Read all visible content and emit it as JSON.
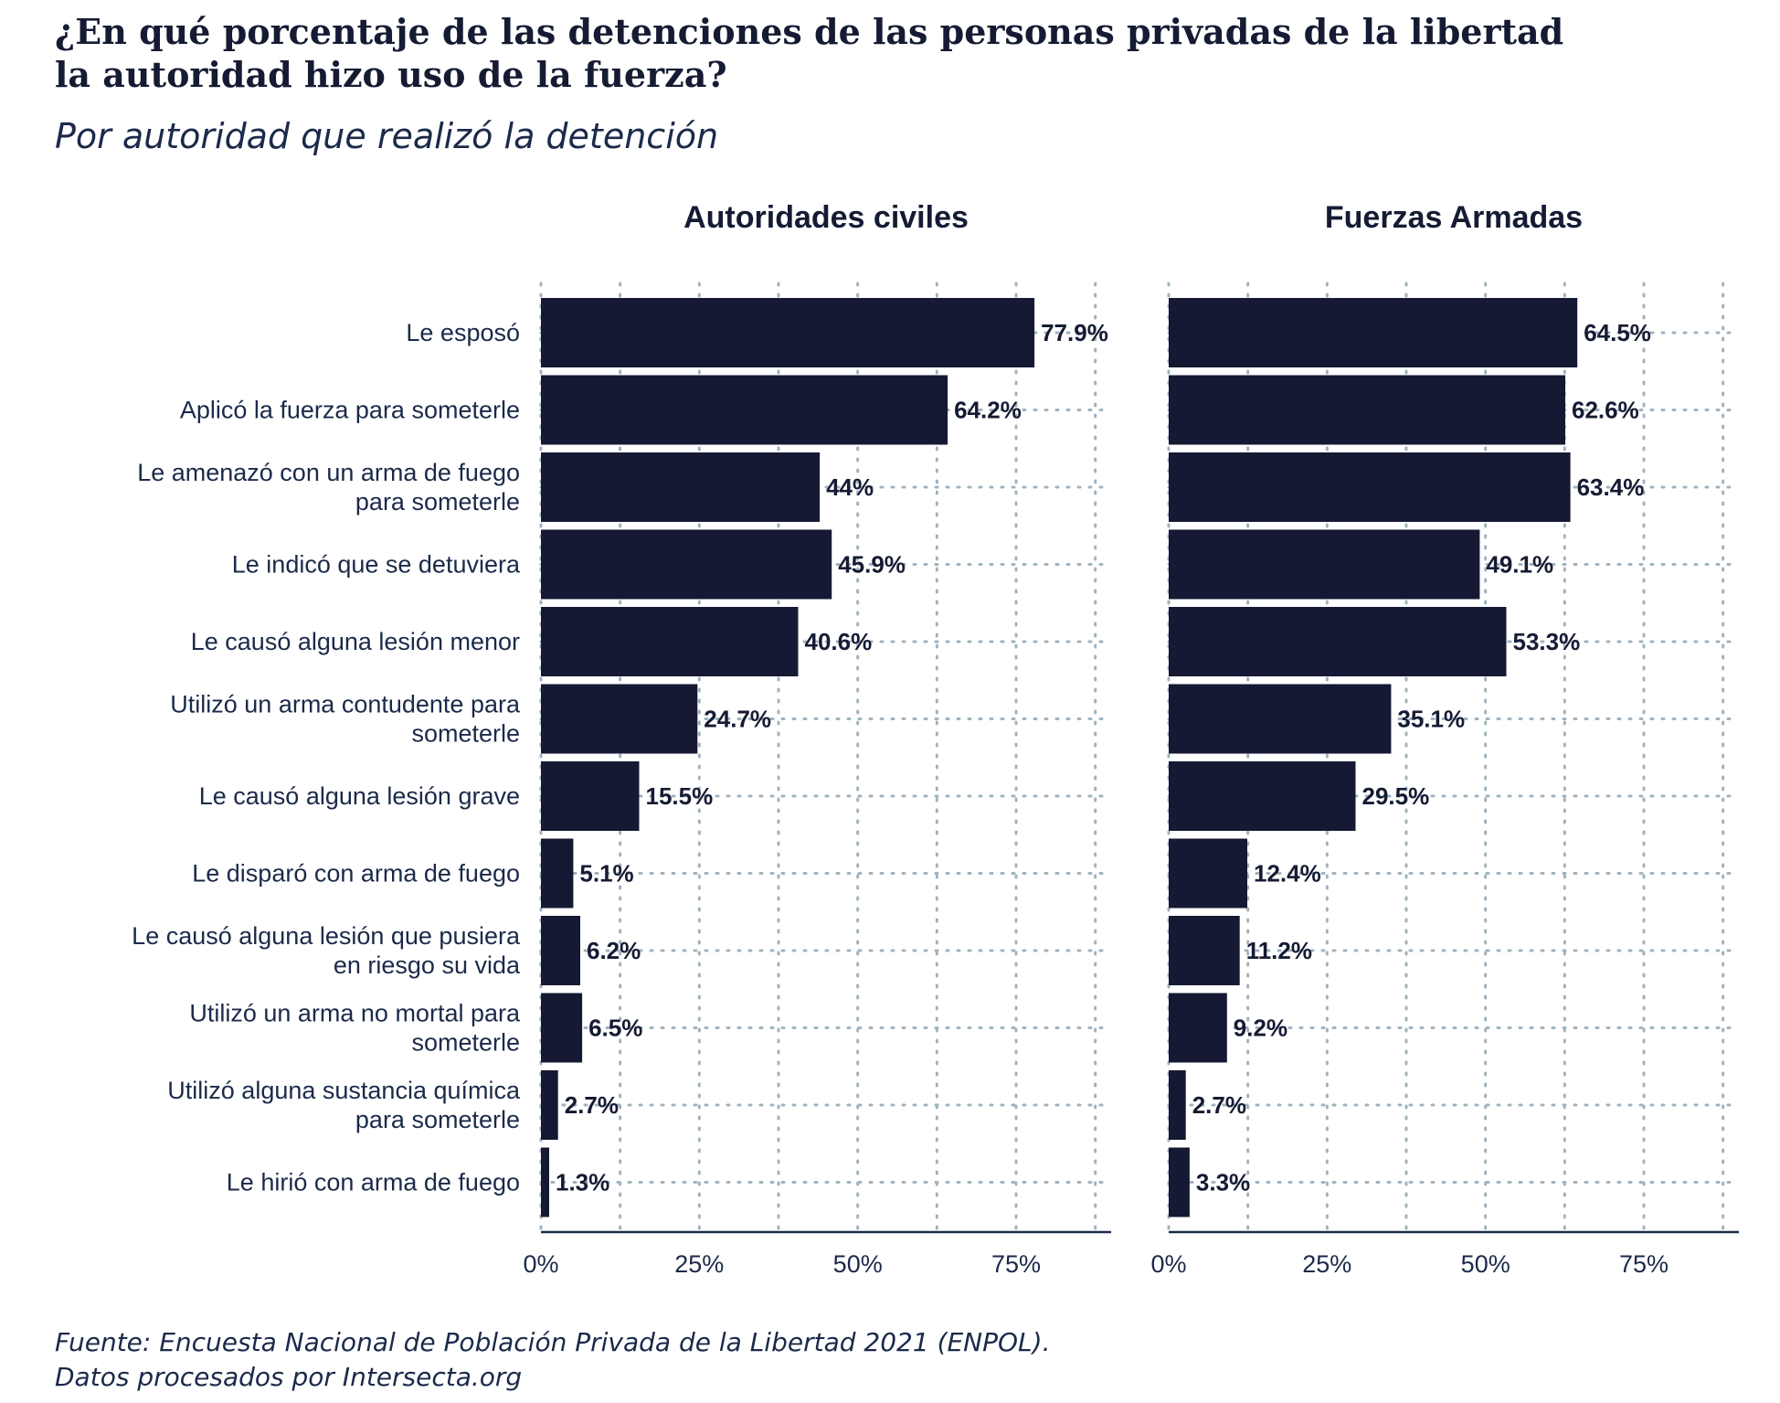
{
  "title_lines": [
    "¿En qué porcentaje de las detenciones de las personas privadas de la libertad",
    "la autoridad hizo uso de la fuerza?"
  ],
  "subtitle": "Por autoridad que realizó la detención",
  "source_lines": [
    "Fuente: Encuesta Nacional de Población Privada de la Libertad 2021 (ENPOL).",
    "Datos procesados por Intersecta.org"
  ],
  "colors": {
    "bar": "#151933",
    "text": "#1b2a4a",
    "grid": "#9fb3bf"
  },
  "chart_data": {
    "type": "bar",
    "orientation": "horizontal",
    "categories": [
      [
        "Le esposó"
      ],
      [
        "Aplicó la fuerza para someterle"
      ],
      [
        "Le amenazó con un arma de fuego",
        "para someterle"
      ],
      [
        "Le indicó que se detuviera"
      ],
      [
        "Le causó alguna lesión menor"
      ],
      [
        "Utilizó un arma contudente para",
        "someterle"
      ],
      [
        "Le causó alguna lesión grave"
      ],
      [
        "Le disparó con arma de fuego"
      ],
      [
        "Le causó alguna lesión que pusiera",
        "en riesgo su vida"
      ],
      [
        "Utilizó un arma no mortal para",
        "someterle"
      ],
      [
        "Utilizó alguna sustancia química",
        "para someterle"
      ],
      [
        "Le hirió con arma de fuego"
      ]
    ],
    "facets": [
      {
        "title": "Autoridades civiles",
        "values": [
          77.9,
          64.2,
          44,
          45.9,
          40.6,
          24.7,
          15.5,
          5.1,
          6.2,
          6.5,
          2.7,
          1.3
        ],
        "labels": [
          "77.9%",
          "64.2%",
          "44%",
          "45.9%",
          "40.6%",
          "24.7%",
          "15.5%",
          "5.1%",
          "6.2%",
          "6.5%",
          "2.7%",
          "1.3%"
        ]
      },
      {
        "title": "Fuerzas Armadas",
        "values": [
          64.5,
          62.6,
          63.4,
          49.1,
          53.3,
          35.1,
          29.5,
          12.4,
          11.2,
          9.2,
          2.7,
          3.3
        ],
        "labels": [
          "64.5%",
          "62.6%",
          "63.4%",
          "49.1%",
          "53.3%",
          "35.1%",
          "29.5%",
          "12.4%",
          "11.2%",
          "9.2%",
          "2.7%",
          "3.3%"
        ]
      }
    ],
    "x_ticks": [
      0,
      25,
      50,
      75
    ],
    "x_tick_labels": [
      "0%",
      "25%",
      "50%",
      "75%"
    ],
    "x_grid_values": [
      0,
      12.5,
      25,
      37.5,
      50,
      62.5,
      75,
      87.5
    ],
    "xlim": [
      0,
      90
    ],
    "grid": true,
    "legend": "none"
  }
}
